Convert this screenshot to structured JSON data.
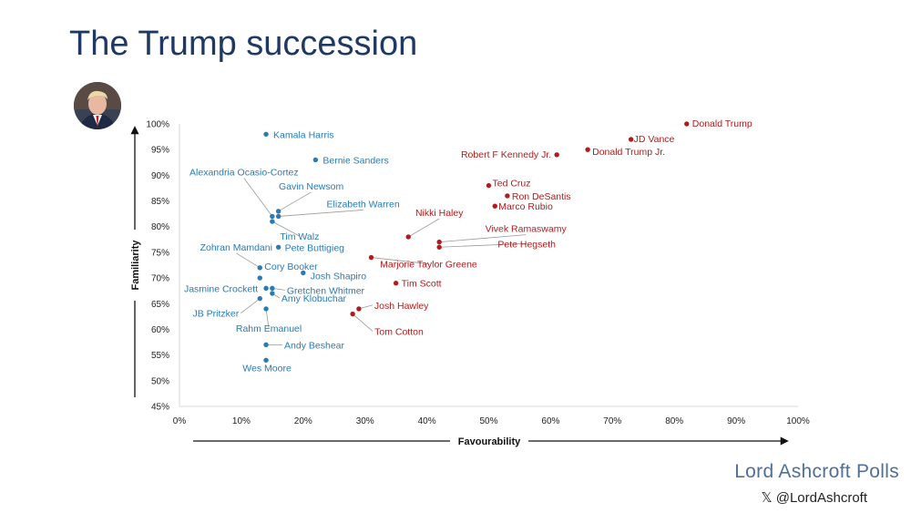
{
  "header": {
    "title": "The Trump succession"
  },
  "footer": {
    "brand": "Lord Ashcroft Polls",
    "handle": "𝕏 @LordAshcroft"
  },
  "colors": {
    "title": "#1f3864",
    "democrat": "#2a7ab5",
    "republican": "#b01c1c",
    "brand": "#4f6f99"
  },
  "icons": {
    "avatar": "donald-trump-portrait"
  },
  "chart_data": {
    "type": "scatter",
    "title": "",
    "xlabel": "Favourability",
    "ylabel": "Familiarity",
    "xlim": [
      0,
      100
    ],
    "ylim": [
      45,
      100
    ],
    "xticks": [
      "0%",
      "10%",
      "20%",
      "30%",
      "40%",
      "50%",
      "60%",
      "70%",
      "80%",
      "90%",
      "100%"
    ],
    "yticks": [
      "45%",
      "50%",
      "55%",
      "60%",
      "65%",
      "70%",
      "75%",
      "80%",
      "85%",
      "90%",
      "95%",
      "100%"
    ],
    "points": [
      {
        "name": "Kamala Harris",
        "x": 14,
        "y": 98,
        "party": "dem"
      },
      {
        "name": "Bernie Sanders",
        "x": 22,
        "y": 93,
        "party": "dem"
      },
      {
        "name": "Alexandria Ocasio-Cortez",
        "x": 15,
        "y": 82,
        "party": "dem"
      },
      {
        "name": "Gavin Newsom",
        "x": 16,
        "y": 83,
        "party": "dem"
      },
      {
        "name": "Elizabeth Warren",
        "x": 16,
        "y": 82,
        "party": "dem"
      },
      {
        "name": "Tim Walz",
        "x": 15,
        "y": 81,
        "party": "dem"
      },
      {
        "name": "Zohran Mamdani",
        "x": 13,
        "y": 72,
        "party": "dem"
      },
      {
        "name": "Pete Buttigieg",
        "x": 16,
        "y": 76,
        "party": "dem"
      },
      {
        "name": "Cory Booker",
        "x": 13,
        "y": 70,
        "party": "dem"
      },
      {
        "name": "Josh Shapiro",
        "x": 20,
        "y": 71,
        "party": "dem"
      },
      {
        "name": "Jasmine Crockett",
        "x": 14,
        "y": 68,
        "party": "dem"
      },
      {
        "name": "Gretchen Whitmer",
        "x": 15,
        "y": 68,
        "party": "dem"
      },
      {
        "name": "JB Pritzker",
        "x": 13,
        "y": 66,
        "party": "dem"
      },
      {
        "name": "Amy Klobuchar",
        "x": 15,
        "y": 67,
        "party": "dem"
      },
      {
        "name": "Rahm Emanuel",
        "x": 14,
        "y": 64,
        "party": "dem"
      },
      {
        "name": "Andy Beshear",
        "x": 14,
        "y": 57,
        "party": "dem"
      },
      {
        "name": "Wes Moore",
        "x": 14,
        "y": 54,
        "party": "dem"
      },
      {
        "name": "Donald Trump",
        "x": 82,
        "y": 100,
        "party": "rep"
      },
      {
        "name": "JD Vance",
        "x": 73,
        "y": 97,
        "party": "rep"
      },
      {
        "name": "Donald Trump Jr.",
        "x": 66,
        "y": 95,
        "party": "rep"
      },
      {
        "name": "Robert F Kennedy Jr.",
        "x": 61,
        "y": 94,
        "party": "rep"
      },
      {
        "name": "Ted Cruz",
        "x": 50,
        "y": 88,
        "party": "rep"
      },
      {
        "name": "Ron DeSantis",
        "x": 53,
        "y": 86,
        "party": "rep"
      },
      {
        "name": "Marco Rubio",
        "x": 51,
        "y": 84,
        "party": "rep"
      },
      {
        "name": "Nikki Haley",
        "x": 37,
        "y": 78,
        "party": "rep"
      },
      {
        "name": "Vivek Ramaswamy",
        "x": 42,
        "y": 77,
        "party": "rep"
      },
      {
        "name": "Pete Hegseth",
        "x": 42,
        "y": 76,
        "party": "rep"
      },
      {
        "name": "Marjorie Taylor Greene",
        "x": 31,
        "y": 74,
        "party": "rep"
      },
      {
        "name": "Tim Scott",
        "x": 35,
        "y": 69,
        "party": "rep"
      },
      {
        "name": "Josh Hawley",
        "x": 29,
        "y": 64,
        "party": "rep"
      },
      {
        "name": "Tom Cotton",
        "x": 28,
        "y": 63,
        "party": "rep"
      }
    ]
  }
}
